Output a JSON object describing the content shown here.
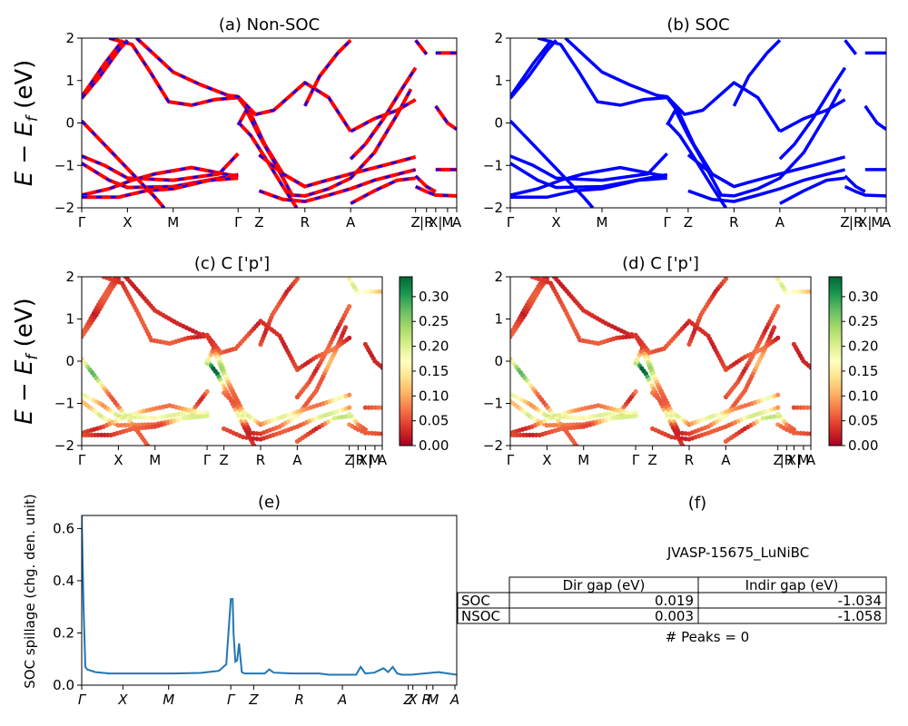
{
  "chart_data": [
    {
      "id": "a",
      "type": "line",
      "title": "(a) Non-SOC",
      "ylabel": "E - E_f (eV)",
      "ylim": [
        -2,
        2
      ],
      "yticks": [
        -2,
        -1,
        0,
        1,
        2
      ],
      "kpath": [
        {
          "label": "Γ",
          "x": 0.0
        },
        {
          "label": "X",
          "x": 0.5
        },
        {
          "label": "M",
          "x": 1.0
        },
        {
          "label": "Γ",
          "x": 1.71
        },
        {
          "label": "Z",
          "x": 1.94
        },
        {
          "label": "R",
          "x": 2.44
        },
        {
          "label": "A",
          "x": 2.94
        },
        {
          "label": "Z",
          "x": 3.65
        },
        {
          "label": "|R",
          "x": 3.77
        },
        {
          "label": "X|",
          "x": 3.87
        },
        {
          "label": "M",
          "x": 4.0
        },
        {
          "label": "A",
          "x": 4.1
        }
      ],
      "xlim": [
        0,
        4.1
      ],
      "series_colors": [
        "#ff0000",
        "#0000ff"
      ],
      "bands": [
        [
          [
            0,
            0.62
          ],
          [
            0.25,
            1.4
          ],
          [
            0.45,
            1.95
          ]
        ],
        [
          [
            0,
            0.58
          ],
          [
            0.2,
            1.1
          ],
          [
            0.4,
            1.7
          ],
          [
            0.5,
            1.95
          ]
        ],
        [
          [
            0.3,
            2
          ],
          [
            0.55,
            1.85
          ],
          [
            0.75,
            1.2
          ],
          [
            0.95,
            0.5
          ],
          [
            1.2,
            0.42
          ],
          [
            1.45,
            0.55
          ],
          [
            1.71,
            0.6
          ],
          [
            1.85,
            0.2
          ],
          [
            2.0,
            -0.5
          ],
          [
            2.2,
            -1.2
          ],
          [
            2.44,
            -1.5
          ]
        ],
        [
          [
            0.6,
            2
          ],
          [
            0.8,
            1.6
          ],
          [
            1.0,
            1.2
          ],
          [
            1.3,
            0.9
          ],
          [
            1.6,
            0.65
          ],
          [
            1.71,
            0.62
          ],
          [
            1.9,
            0.2
          ],
          [
            2.1,
            0.3
          ],
          [
            2.44,
            0.95
          ],
          [
            2.7,
            0.6
          ],
          [
            2.94,
            -0.2
          ]
        ],
        [
          [
            0,
            -0.78
          ],
          [
            0.25,
            -1.0
          ],
          [
            0.5,
            -1.3
          ],
          [
            1.0,
            -1.35
          ],
          [
            1.5,
            -1.2
          ],
          [
            1.71,
            -0.72
          ]
        ],
        [
          [
            0,
            -0.95
          ],
          [
            0.3,
            -1.35
          ],
          [
            0.5,
            -1.52
          ],
          [
            1.0,
            -1.5
          ],
          [
            1.5,
            -1.3
          ],
          [
            1.71,
            -1.22
          ]
        ],
        [
          [
            0,
            -1.7
          ],
          [
            0.3,
            -1.55
          ],
          [
            0.55,
            -1.35
          ],
          [
            0.8,
            -1.2
          ],
          [
            1.2,
            -1.05
          ],
          [
            1.6,
            -1.22
          ],
          [
            1.71,
            -1.25
          ]
        ],
        [
          [
            0,
            -1.75
          ],
          [
            0.4,
            -1.75
          ],
          [
            0.7,
            -1.6
          ],
          [
            1.0,
            -1.55
          ],
          [
            1.4,
            -1.35
          ],
          [
            1.71,
            -1.3
          ]
        ],
        [
          [
            0,
            0.05
          ],
          [
            0.2,
            -0.4
          ],
          [
            0.4,
            -0.85
          ],
          [
            0.6,
            -1.3
          ],
          [
            0.8,
            -1.75
          ],
          [
            0.9,
            -2
          ]
        ],
        [
          [
            1.71,
            0.02
          ],
          [
            1.85,
            -0.3
          ],
          [
            2.0,
            -0.8
          ],
          [
            2.2,
            -1.5
          ],
          [
            2.35,
            -2
          ]
        ],
        [
          [
            1.71,
            -0.05
          ],
          [
            1.8,
            0.3
          ],
          [
            1.94,
            -0.3
          ],
          [
            2.1,
            -0.9
          ],
          [
            2.3,
            -1.7
          ],
          [
            2.44,
            -1.72
          ],
          [
            2.7,
            -1.55
          ],
          [
            2.94,
            -1.3
          ],
          [
            3.2,
            -0.7
          ],
          [
            3.45,
            0.2
          ],
          [
            3.6,
            0.8
          ]
        ],
        [
          [
            1.94,
            -0.75
          ],
          [
            2.2,
            -1.2
          ],
          [
            2.44,
            -1.5
          ],
          [
            2.6,
            -1.4
          ],
          [
            2.94,
            -1.2
          ],
          [
            3.3,
            -1.0
          ],
          [
            3.65,
            -0.8
          ]
        ],
        [
          [
            1.94,
            -1.6
          ],
          [
            2.2,
            -1.8
          ],
          [
            2.44,
            -1.85
          ],
          [
            2.7,
            -1.7
          ],
          [
            2.94,
            -1.55
          ],
          [
            3.2,
            -1.35
          ],
          [
            3.65,
            -1.1
          ]
        ],
        [
          [
            2.44,
            0.4
          ],
          [
            2.6,
            1.1
          ],
          [
            2.8,
            1.65
          ],
          [
            2.94,
            1.95
          ]
        ],
        [
          [
            2.94,
            -0.85
          ],
          [
            3.1,
            -0.5
          ],
          [
            3.3,
            0.1
          ],
          [
            3.5,
            0.8
          ],
          [
            3.65,
            1.3
          ]
        ],
        [
          [
            2.94,
            -0.2
          ],
          [
            3.2,
            0.1
          ],
          [
            3.45,
            0.3
          ],
          [
            3.65,
            0.55
          ]
        ],
        [
          [
            2.94,
            -1.9
          ],
          [
            3.2,
            -1.6
          ],
          [
            3.45,
            -1.35
          ],
          [
            3.65,
            -1.3
          ]
        ],
        [
          [
            3.65,
            -1.25
          ],
          [
            3.77,
            -1.5
          ],
          [
            3.87,
            -1.62
          ]
        ],
        [
          [
            3.65,
            -1.5
          ],
          [
            3.77,
            -1.62
          ],
          [
            3.87,
            -1.7
          ],
          [
            4.1,
            -1.72
          ]
        ],
        [
          [
            3.87,
            -1.1
          ],
          [
            4.1,
            -1.1
          ]
        ],
        [
          [
            3.65,
            1.95
          ],
          [
            3.77,
            1.62
          ]
        ],
        [
          [
            3.87,
            0.4
          ],
          [
            4.0,
            0.0
          ],
          [
            4.1,
            -0.15
          ]
        ],
        [
          [
            3.87,
            1.65
          ],
          [
            4.1,
            1.65
          ]
        ]
      ]
    },
    {
      "id": "b",
      "type": "line",
      "title": "(b) SOC",
      "ylim": [
        -2,
        2
      ],
      "yticks": [
        -2,
        -1,
        0,
        1,
        2
      ],
      "kpath_ref": "a",
      "series_colors": [
        "#0000ff"
      ]
    },
    {
      "id": "c",
      "type": "scatter",
      "title": "(c)  C ['p']",
      "ylabel": "E - E_f (eV)",
      "ylim": [
        -2,
        2
      ],
      "yticks": [
        -2,
        -1,
        0,
        1,
        2
      ],
      "kpath_ref": "a",
      "colorbar": {
        "ticks": [
          "0.00",
          "0.05",
          "0.10",
          "0.15",
          "0.20",
          "0.25",
          "0.30"
        ],
        "max": 0.34,
        "colormap": "RdYlGn"
      }
    },
    {
      "id": "d",
      "type": "scatter",
      "title": "(d) C ['p']",
      "ylim": [
        -2,
        2
      ],
      "yticks": [
        -2,
        -1,
        0,
        1,
        2
      ],
      "kpath_ref": "a",
      "colorbar": {
        "ticks": [
          "0.00",
          "0.05",
          "0.10",
          "0.15",
          "0.20",
          "0.25",
          "0.30"
        ],
        "max": 0.34,
        "colormap": "RdYlGn"
      }
    },
    {
      "id": "e",
      "type": "line",
      "title": "(e)",
      "ylabel": "SOC spillage (chg. den. unit)",
      "ylim": [
        0,
        0.65
      ],
      "yticks": [
        "0.0",
        "0.2",
        "0.4",
        "0.6"
      ],
      "xlim": [
        0,
        4.1
      ],
      "kpath_italic": [
        {
          "label": "Γ",
          "x": 0.0
        },
        {
          "label": "X",
          "x": 0.45
        },
        {
          "label": "M",
          "x": 0.95
        },
        {
          "label": "Γ",
          "x": 1.63
        },
        {
          "label": "Z",
          "x": 1.88
        },
        {
          "label": "R",
          "x": 2.38
        },
        {
          "label": "A",
          "x": 2.85
        },
        {
          "label": "Z",
          "x": 3.57
        },
        {
          "label": "X",
          "x": 3.62
        },
        {
          "label": "R",
          "x": 3.77
        },
        {
          "label": "M",
          "x": 3.84
        },
        {
          "label": "A",
          "x": 4.08
        }
      ],
      "color": "#1f77b4",
      "x": [
        0,
        0.02,
        0.04,
        0.06,
        0.15,
        0.3,
        0.6,
        1.0,
        1.3,
        1.5,
        1.58,
        1.63,
        1.65,
        1.66,
        1.68,
        1.7,
        1.72,
        1.75,
        1.78,
        1.8,
        1.85,
        2.0,
        2.05,
        2.1,
        2.3,
        2.6,
        2.7,
        3.0,
        3.05,
        3.1,
        3.2,
        3.3,
        3.35,
        3.4,
        3.45,
        3.5,
        3.6,
        3.9,
        4.1
      ],
      "y": [
        0.65,
        0.3,
        0.07,
        0.06,
        0.05,
        0.045,
        0.045,
        0.045,
        0.047,
        0.055,
        0.08,
        0.33,
        0.33,
        0.2,
        0.09,
        0.095,
        0.16,
        0.05,
        0.045,
        0.045,
        0.045,
        0.045,
        0.06,
        0.048,
        0.045,
        0.045,
        0.04,
        0.04,
        0.07,
        0.045,
        0.048,
        0.065,
        0.05,
        0.07,
        0.045,
        0.04,
        0.04,
        0.05,
        0.04
      ]
    }
  ],
  "panel_f": {
    "title": "(f)",
    "subtitle": "JVASP-15675_LuNiBC",
    "columns": [
      "",
      "Dir gap (eV)",
      "Indir gap (eV)"
    ],
    "rows": [
      {
        "label": "SOC",
        "dir": "0.019",
        "indir": "-1.034"
      },
      {
        "label": "NSOC",
        "dir": "0.003",
        "indir": "-1.058"
      }
    ],
    "peaks": "# Peaks = 0"
  }
}
